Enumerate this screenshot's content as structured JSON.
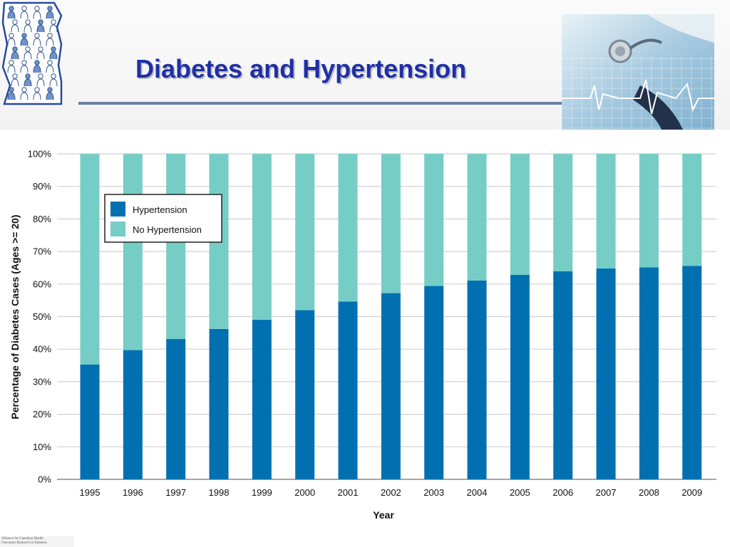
{
  "slide": {
    "title": "Diabetes and Hypertension",
    "footer_line1": "Alliance for Canadian Health",
    "footer_line2": "Outcomes Research in Diabetes"
  },
  "icons": {
    "logo": "alberta-people-map-icon",
    "photo": "stethoscope-ecg-photo-icon"
  },
  "colors": {
    "title": "#1f2fa6",
    "hypertension": "#0070b0",
    "no_hypertension": "#76cdc6",
    "grid": "#d0d0d0"
  },
  "chart_data": {
    "type": "bar",
    "stacked": true,
    "categories": [
      "1995",
      "1996",
      "1997",
      "1998",
      "1999",
      "2000",
      "2001",
      "2002",
      "2003",
      "2004",
      "2005",
      "2006",
      "2007",
      "2008",
      "2009"
    ],
    "series": [
      {
        "name": "Hypertension",
        "values": [
          35.3,
          39.7,
          43.1,
          46.2,
          49.0,
          52.0,
          54.6,
          57.2,
          59.4,
          61.1,
          62.8,
          63.9,
          64.8,
          65.1,
          65.6
        ]
      },
      {
        "name": "No Hypertension",
        "values": [
          64.7,
          60.3,
          56.9,
          53.8,
          51.0,
          48.0,
          45.4,
          42.8,
          40.6,
          38.9,
          37.2,
          36.1,
          35.2,
          34.9,
          34.4
        ]
      }
    ],
    "title": "",
    "xlabel": "Year",
    "ylabel": "Percentage of Diabetes Cases (Ages >= 20)",
    "ylim": [
      0,
      100
    ],
    "yticks": [
      "0%",
      "10%",
      "20%",
      "30%",
      "40%",
      "50%",
      "60%",
      "70%",
      "80%",
      "90%",
      "100%"
    ],
    "grid": true,
    "legend_position": "top-left"
  }
}
